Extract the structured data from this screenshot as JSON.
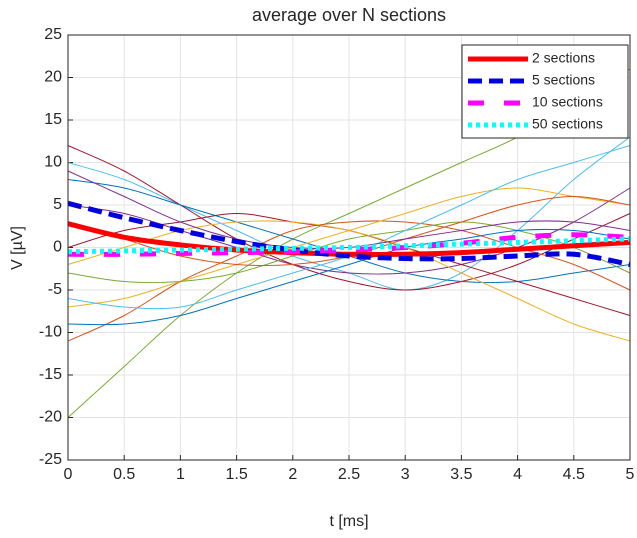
{
  "chart_data": {
    "type": "line",
    "title": "average over N sections",
    "xlabel": "t [ms]",
    "ylabel": "V [µV]",
    "x": [
      0,
      0.5,
      1,
      1.5,
      2,
      2.5,
      3,
      3.5,
      4,
      4.5,
      5
    ],
    "xlim": [
      0,
      5
    ],
    "xticks": [
      0,
      0.5,
      1,
      1.5,
      2,
      2.5,
      3,
      3.5,
      4,
      4.5,
      5
    ],
    "ylim": [
      -25,
      25
    ],
    "yticks": [
      -25,
      -20,
      -15,
      -10,
      -5,
      0,
      5,
      10,
      15,
      20,
      25
    ],
    "grid": true,
    "legend": "northeast",
    "series": [
      {
        "color": "#77AC30",
        "values": [
          -20,
          -14,
          -8,
          -3,
          1,
          4,
          7,
          10,
          13,
          17,
          21
        ]
      },
      {
        "color": "#4DBEEE",
        "values": [
          10,
          8,
          5,
          2,
          -1,
          -3,
          -5,
          -3,
          2,
          8,
          13
        ]
      },
      {
        "color": "#A2142F",
        "values": [
          12,
          9,
          5,
          1,
          -2,
          -4,
          -5,
          -4,
          -2,
          1,
          4
        ]
      },
      {
        "color": "#0072BD",
        "values": [
          8,
          7,
          5,
          3,
          1,
          -1,
          -3,
          -4,
          -4,
          -3,
          -2
        ]
      },
      {
        "color": "#D95319",
        "values": [
          -11,
          -8,
          -4,
          -1,
          2,
          3,
          3,
          2,
          0,
          -2,
          -5
        ]
      },
      {
        "color": "#EDB120",
        "values": [
          -7,
          -6,
          -4,
          -2,
          0,
          2,
          4,
          6,
          7,
          6,
          5
        ]
      },
      {
        "color": "#7E2F8E",
        "values": [
          5,
          4,
          2,
          0,
          -2,
          -3,
          -3,
          -2,
          0,
          3,
          7
        ]
      },
      {
        "color": "#77AC30",
        "values": [
          -3,
          -4,
          -4,
          -3,
          -1,
          1,
          2,
          3,
          2,
          0,
          -3
        ]
      },
      {
        "color": "#4DBEEE",
        "values": [
          -6,
          -7,
          -7,
          -5,
          -3,
          -1,
          2,
          5,
          8,
          10,
          12
        ]
      },
      {
        "color": "#A2142F",
        "values": [
          0,
          2,
          3,
          4,
          3,
          2,
          0,
          -2,
          -4,
          -6,
          -8
        ]
      },
      {
        "color": "#0072BD",
        "values": [
          -9,
          -9,
          -8,
          -6,
          -4,
          -2,
          0,
          1,
          2,
          2,
          1
        ]
      },
      {
        "color": "#D95319",
        "values": [
          3,
          1,
          -1,
          -2,
          -2,
          -1,
          1,
          3,
          5,
          6,
          5
        ]
      },
      {
        "color": "#EDB120",
        "values": [
          -2,
          0,
          2,
          3,
          3,
          2,
          0,
          -3,
          -6,
          -9,
          -11
        ]
      },
      {
        "color": "#7E2F8E",
        "values": [
          9,
          6,
          3,
          1,
          0,
          0,
          1,
          2,
          3,
          3,
          2
        ]
      },
      {
        "name": "2 sections",
        "color": "#ff0000",
        "linestyle": "-",
        "values": [
          2.8,
          1.2,
          0.3,
          -0.3,
          -0.6,
          -0.8,
          -0.8,
          -0.6,
          -0.2,
          0.2,
          0.6
        ]
      },
      {
        "name": "5 sections",
        "color": "#0000e0",
        "linestyle": "--",
        "values": [
          5.2,
          3.5,
          2,
          0.7,
          -0.3,
          -1,
          -1.3,
          -1.3,
          -1,
          -0.8,
          -2
        ]
      },
      {
        "name": "10 sections",
        "color": "#ff00ff",
        "linestyle": "--",
        "values": [
          -0.8,
          -0.8,
          -0.7,
          -0.6,
          -0.5,
          -0.3,
          0,
          0.5,
          1.2,
          1.5,
          1.2
        ]
      },
      {
        "name": "50 sections",
        "color": "#00ffff",
        "linestyle": ":",
        "values": [
          -0.5,
          -0.4,
          -0.3,
          -0.2,
          -0.1,
          0,
          0.2,
          0.4,
          0.6,
          0.8,
          1
        ]
      }
    ]
  }
}
